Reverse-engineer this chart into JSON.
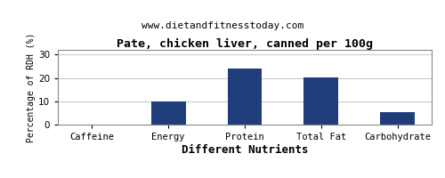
{
  "title": "Pate, chicken liver, canned per 100g",
  "subtitle": "www.dietandfitnesstoday.com",
  "xlabel": "Different Nutrients",
  "ylabel": "Percentage of RDH (%)",
  "categories": [
    "Caffeine",
    "Energy",
    "Protein",
    "Total Fat",
    "Carbohydrate"
  ],
  "values": [
    0,
    10,
    24,
    20.3,
    5.5
  ],
  "bar_color": "#1f3d7a",
  "ylim": [
    0,
    32
  ],
  "yticks": [
    0,
    10,
    20,
    30
  ],
  "background_color": "#ffffff",
  "grid_color": "#bbbbbb",
  "title_fontsize": 9.5,
  "subtitle_fontsize": 8,
  "xlabel_fontsize": 9,
  "ylabel_fontsize": 7,
  "tick_fontsize": 7.5,
  "bar_width": 0.45
}
